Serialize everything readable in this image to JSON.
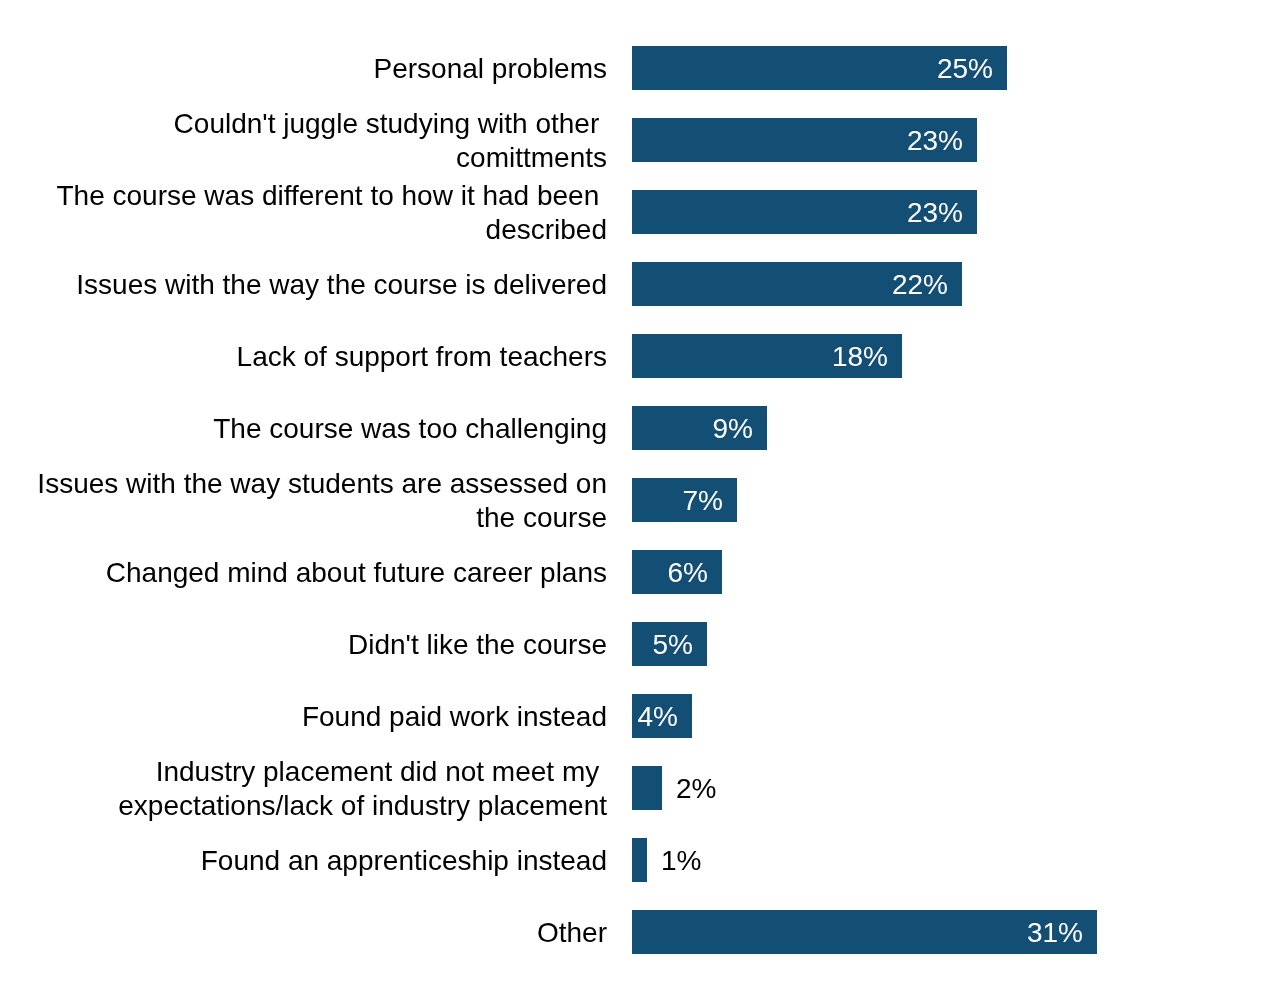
{
  "chart_data": {
    "type": "bar",
    "orientation": "horizontal",
    "color": "#134f75",
    "categories": [
      "Personal problems",
      "Couldn't juggle studying with other comittments",
      "The course was different to how it had been described",
      "Issues with the way the course is delivered",
      "Lack of support from teachers",
      "The course was too challenging",
      "Issues with the way students are assessed on the course",
      "Changed mind about future career plans",
      "Didn't like the course",
      "Found paid work instead",
      "Industry placement did not meet my expectations/lack of industry placement",
      "Found an apprenticeship instead",
      "Other"
    ],
    "values": [
      25,
      23,
      23,
      22,
      18,
      9,
      7,
      6,
      5,
      4,
      2,
      1,
      31
    ],
    "value_labels": [
      "25%",
      "23%",
      "23%",
      "22%",
      "18%",
      "9%",
      "7%",
      "6%",
      "5%",
      "4%",
      "2%",
      "1%",
      "31%"
    ]
  }
}
